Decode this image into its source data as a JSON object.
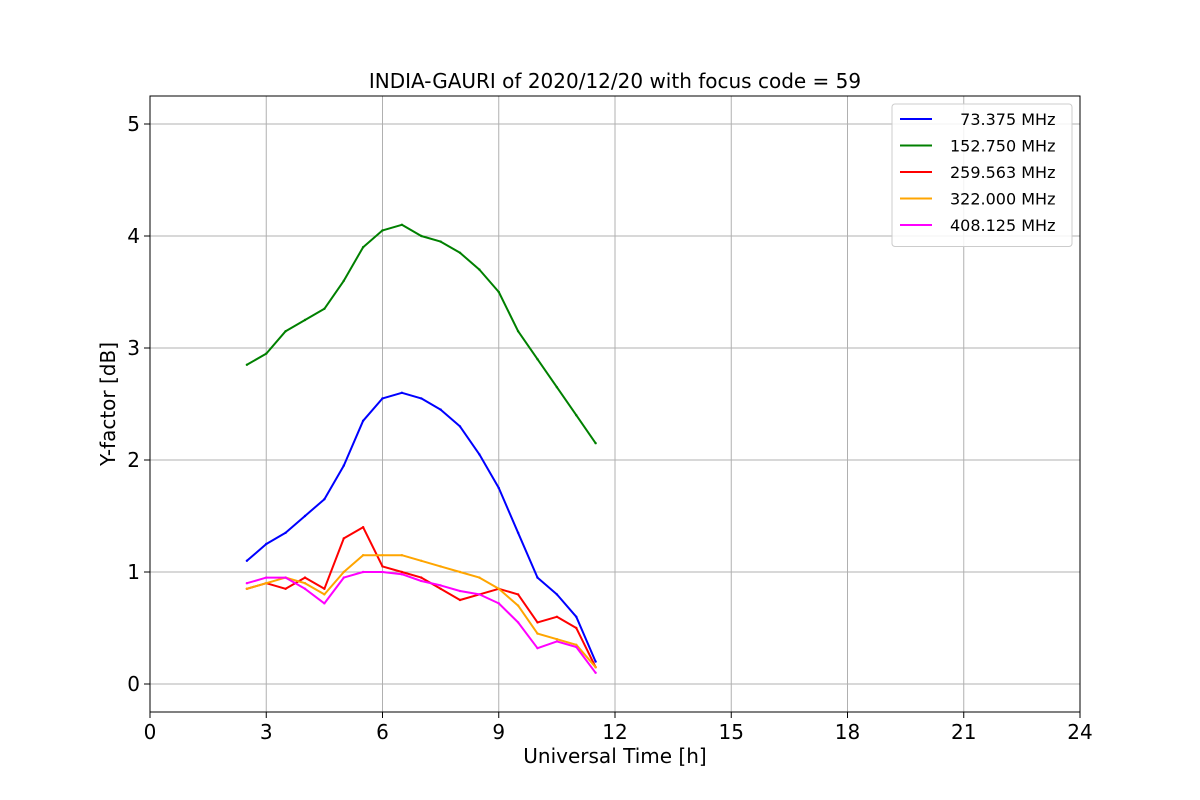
{
  "chart_data": {
    "type": "line",
    "title": "INDIA-GAURI of 2020/12/20 with focus code = 59",
    "xlabel": "Universal Time [h]",
    "ylabel": "Y-factor [dB]",
    "xlim": [
      0,
      24
    ],
    "ylim": [
      -0.25,
      5.25
    ],
    "xticks": [
      0,
      3,
      6,
      9,
      12,
      15,
      18,
      21,
      24
    ],
    "yticks": [
      0,
      1,
      2,
      3,
      4,
      5
    ],
    "grid": true,
    "legend_position": "top-right",
    "series": [
      {
        "name": "  73.375 MHz",
        "color": "#0000ff",
        "x": [
          2.5,
          3.0,
          3.5,
          4.0,
          4.5,
          5.0,
          5.5,
          6.0,
          6.5,
          7.0,
          7.5,
          8.0,
          8.5,
          9.0,
          9.5,
          10.0,
          10.5,
          11.0,
          11.5
        ],
        "y": [
          1.1,
          1.25,
          1.35,
          1.5,
          1.65,
          1.95,
          2.35,
          2.55,
          2.6,
          2.55,
          2.45,
          2.3,
          2.05,
          1.75,
          1.35,
          0.95,
          0.8,
          0.6,
          0.2
        ]
      },
      {
        "name": "152.750 MHz",
        "color": "#008000",
        "x": [
          2.5,
          3.0,
          3.5,
          4.0,
          4.5,
          5.0,
          5.5,
          6.0,
          6.5,
          7.0,
          7.5,
          8.0,
          8.5,
          9.0,
          9.5,
          10.0,
          10.5,
          11.0,
          11.5
        ],
        "y": [
          2.85,
          2.95,
          3.15,
          3.25,
          3.35,
          3.6,
          3.9,
          4.05,
          4.1,
          4.0,
          3.95,
          3.85,
          3.7,
          3.5,
          3.15,
          2.9,
          2.65,
          2.4,
          2.15
        ]
      },
      {
        "name": "259.563 MHz",
        "color": "#ff0000",
        "x": [
          2.5,
          3.0,
          3.5,
          4.0,
          4.5,
          5.0,
          5.5,
          6.0,
          6.5,
          7.0,
          7.5,
          8.0,
          8.5,
          9.0,
          9.5,
          10.0,
          10.5,
          11.0,
          11.5
        ],
        "y": [
          0.85,
          0.9,
          0.85,
          0.95,
          0.85,
          1.3,
          1.4,
          1.05,
          1.0,
          0.95,
          0.85,
          0.75,
          0.8,
          0.85,
          0.8,
          0.55,
          0.6,
          0.5,
          0.15
        ]
      },
      {
        "name": "322.000 MHz",
        "color": "#ffa500",
        "x": [
          2.5,
          3.0,
          3.5,
          4.0,
          4.5,
          5.0,
          5.5,
          6.0,
          6.5,
          7.0,
          7.5,
          8.0,
          8.5,
          9.0,
          9.5,
          10.0,
          10.5,
          11.0,
          11.5
        ],
        "y": [
          0.85,
          0.9,
          0.95,
          0.9,
          0.8,
          1.0,
          1.15,
          1.15,
          1.15,
          1.1,
          1.05,
          1.0,
          0.95,
          0.85,
          0.7,
          0.45,
          0.4,
          0.35,
          0.15
        ]
      },
      {
        "name": "408.125 MHz",
        "color": "#ff00ff",
        "x": [
          2.5,
          3.0,
          3.5,
          4.0,
          4.5,
          5.0,
          5.5,
          6.0,
          6.5,
          7.0,
          7.5,
          8.0,
          8.5,
          9.0,
          9.5,
          10.0,
          10.5,
          11.0,
          11.5
        ],
        "y": [
          0.9,
          0.95,
          0.95,
          0.85,
          0.72,
          0.95,
          1.0,
          1.0,
          0.98,
          0.92,
          0.88,
          0.83,
          0.8,
          0.72,
          0.55,
          0.32,
          0.38,
          0.33,
          0.1
        ]
      }
    ]
  }
}
